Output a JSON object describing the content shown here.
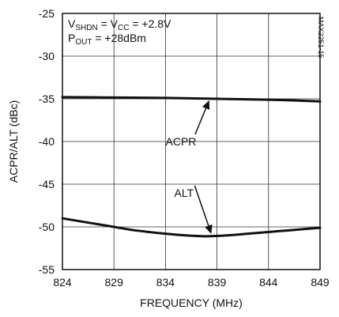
{
  "chart_data": {
    "type": "line",
    "xlabel": "FREQUENCY (MHz)",
    "ylabel": "ACPR/ALT (dBc)",
    "xlim": [
      824,
      849
    ],
    "ylim": [
      -55,
      -25
    ],
    "x_ticks": [
      824,
      829,
      834,
      839,
      844,
      849
    ],
    "x_tick_labels": [
      "824",
      "829",
      "834",
      "839",
      "844",
      "849"
    ],
    "y_ticks": [
      -25,
      -30,
      -35,
      -40,
      -45,
      -50,
      -55
    ],
    "y_tick_labels": [
      "-25",
      "-30",
      "-35",
      "-40",
      "-45",
      "-50",
      "-55"
    ],
    "grid": true,
    "conditions": {
      "line1": {
        "main": "V",
        "sub1": "SHDN",
        "mid": " = V",
        "sub2": "CC",
        "tail": " = +2.8V"
      },
      "line2": {
        "main": "P",
        "sub1": "OUT",
        "tail": " = +28dBm"
      }
    },
    "part_id": "MAX2251-15",
    "series": [
      {
        "name": "ACPR",
        "x": [
          824,
          829,
          834,
          839,
          844,
          849
        ],
        "y": [
          -34.8,
          -34.85,
          -34.9,
          -35.0,
          -35.1,
          -35.3
        ]
      },
      {
        "name": "ALT",
        "x": [
          824,
          827,
          829,
          831,
          834,
          836,
          838,
          840,
          842,
          844,
          846,
          849
        ],
        "y": [
          -49.0,
          -49.6,
          -50.0,
          -50.4,
          -50.8,
          -51.0,
          -51.1,
          -51.0,
          -50.8,
          -50.6,
          -50.4,
          -50.1
        ]
      }
    ],
    "annotations": [
      {
        "text": "ACPR",
        "x": 835.5,
        "y": -40,
        "arrow_to": [
          838.3,
          -35.0
        ]
      },
      {
        "text": "ALT",
        "x": 835.8,
        "y": -46,
        "arrow_to": [
          838.5,
          -51.0
        ]
      }
    ]
  }
}
